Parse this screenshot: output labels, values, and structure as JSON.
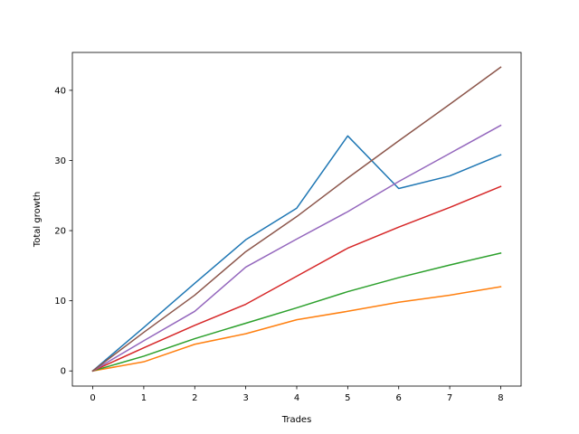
{
  "chart_data": {
    "type": "line",
    "title": "",
    "xlabel": "Trades",
    "ylabel": "Total growth",
    "x": [
      0,
      1,
      2,
      3,
      4,
      5,
      6,
      7,
      8
    ],
    "xlim": [
      -0.4,
      8.4
    ],
    "ylim": [
      -2.16,
      45.4
    ],
    "xticks": [
      0,
      1,
      2,
      3,
      4,
      5,
      6,
      7,
      8
    ],
    "yticks": [
      0,
      10,
      20,
      30,
      40
    ],
    "grid": false,
    "legend": "none",
    "series": [
      {
        "color": "#1f77b4",
        "values": [
          0,
          6.2,
          12.5,
          18.7,
          23.2,
          33.5,
          26.0,
          27.8,
          30.8
        ]
      },
      {
        "color": "#ff7f0e",
        "values": [
          0,
          1.3,
          3.8,
          5.3,
          7.3,
          8.5,
          9.8,
          10.8,
          12.0
        ]
      },
      {
        "color": "#2ca02c",
        "values": [
          0,
          2.1,
          4.6,
          6.8,
          9.0,
          11.3,
          13.3,
          15.1,
          16.8
        ]
      },
      {
        "color": "#d62728",
        "values": [
          0,
          3.3,
          6.5,
          9.5,
          13.5,
          17.5,
          20.5,
          23.3,
          26.3
        ]
      },
      {
        "color": "#9467bd",
        "values": [
          0,
          4.3,
          8.5,
          14.8,
          18.8,
          22.7,
          27.0,
          31.0,
          35.0
        ]
      },
      {
        "color": "#8c564b",
        "values": [
          0,
          5.5,
          10.8,
          17.0,
          22.0,
          27.5,
          32.8,
          38.0,
          43.3
        ]
      }
    ]
  }
}
